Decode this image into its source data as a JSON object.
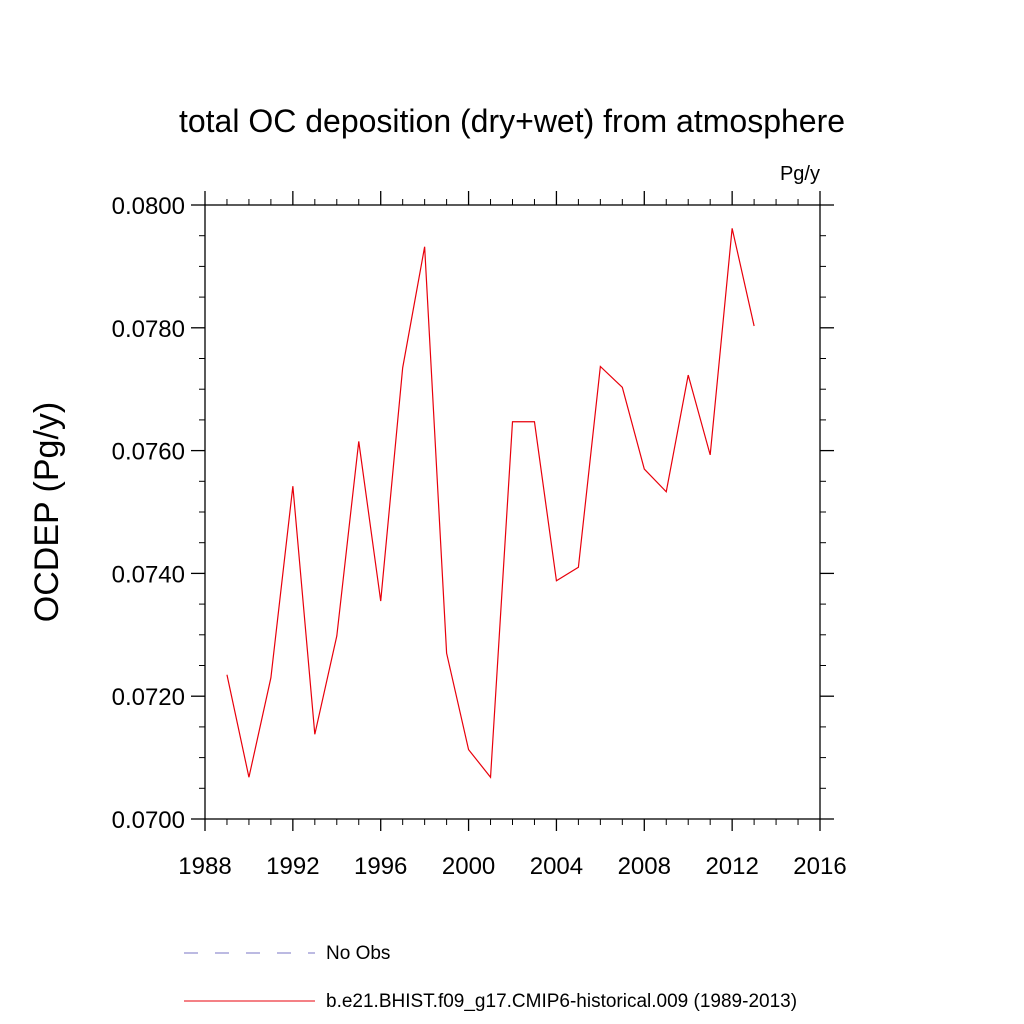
{
  "chart_data": {
    "type": "line",
    "title": "total OC deposition (dry+wet) from atmosphere",
    "units_label": "Pg/y",
    "xlabel": "",
    "ylabel": "OCDEP  (Pg/y)",
    "xlim": [
      1988,
      2016
    ],
    "ylim": [
      0.07,
      0.08
    ],
    "x_ticks": [
      1988,
      1992,
      1996,
      2000,
      2004,
      2008,
      2012,
      2016
    ],
    "y_ticks": [
      "0.0700",
      "0.0720",
      "0.0740",
      "0.0760",
      "0.0780",
      "0.0800"
    ],
    "grid": false,
    "legend_placement": "bottom",
    "series": [
      {
        "name": "b.e21.BHIST.f09_g17.CMIP6-historical.009 (1989-2013)",
        "color": "#e8000b",
        "x": [
          1989,
          1990,
          1991,
          1992,
          1993,
          1994,
          1995,
          1996,
          1997,
          1998,
          1999,
          2000,
          2001,
          2002,
          2003,
          2004,
          2005,
          2006,
          2007,
          2008,
          2009,
          2010,
          2011,
          2012,
          2013
        ],
        "y": [
          0.07235,
          0.07068,
          0.0723,
          0.07542,
          0.07138,
          0.07298,
          0.07615,
          0.07355,
          0.07735,
          0.07932,
          0.0727,
          0.07113,
          0.07068,
          0.07647,
          0.07647,
          0.07388,
          0.0741,
          0.07737,
          0.07703,
          0.0757,
          0.07533,
          0.07723,
          0.07593,
          0.07962,
          0.07803
        ]
      }
    ],
    "legend": [
      {
        "label": "No Obs",
        "style": "dashed",
        "color": "#7a74c4"
      },
      {
        "label": "b.e21.BHIST.f09_g17.CMIP6-historical.009 (1989-2013)",
        "style": "solid",
        "color": "#e8000b"
      }
    ]
  }
}
